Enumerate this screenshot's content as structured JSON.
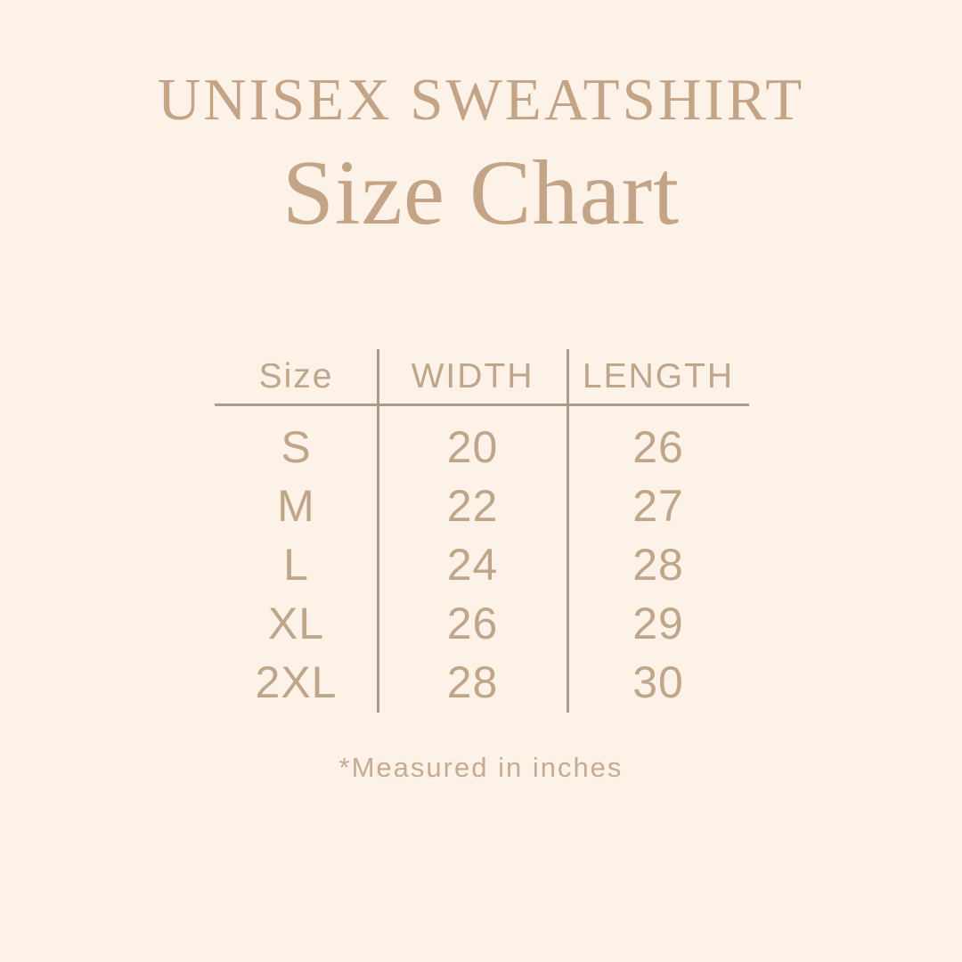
{
  "page": {
    "background_color": "#fcf2e8",
    "accent_text_color": "#c4a487",
    "table_text_color": "#bfa68b",
    "line_color": "#ab9b8d"
  },
  "header": {
    "title": "UNISEX SWEATSHIRT",
    "subtitle": "Size Chart"
  },
  "table": {
    "columns": {
      "size": "Size",
      "width": "WIDTH",
      "length": "LENGTH"
    },
    "rows": [
      {
        "size": "S",
        "width": "20",
        "length": "26"
      },
      {
        "size": "M",
        "width": "22",
        "length": "27"
      },
      {
        "size": "L",
        "width": "24",
        "length": "28"
      },
      {
        "size": "XL",
        "width": "26",
        "length": "29"
      },
      {
        "size": "2XL",
        "width": "28",
        "length": "30"
      }
    ]
  },
  "footnote": "*Measured in inches",
  "chart_data": {
    "type": "table",
    "title": "UNISEX SWEATSHIRT Size Chart",
    "columns": [
      "Size",
      "WIDTH",
      "LENGTH"
    ],
    "rows": [
      [
        "S",
        20,
        26
      ],
      [
        "M",
        22,
        27
      ],
      [
        "L",
        24,
        28
      ],
      [
        "XL",
        26,
        29
      ],
      [
        "2XL",
        28,
        30
      ]
    ],
    "units": "inches",
    "note": "*Measured in inches"
  }
}
